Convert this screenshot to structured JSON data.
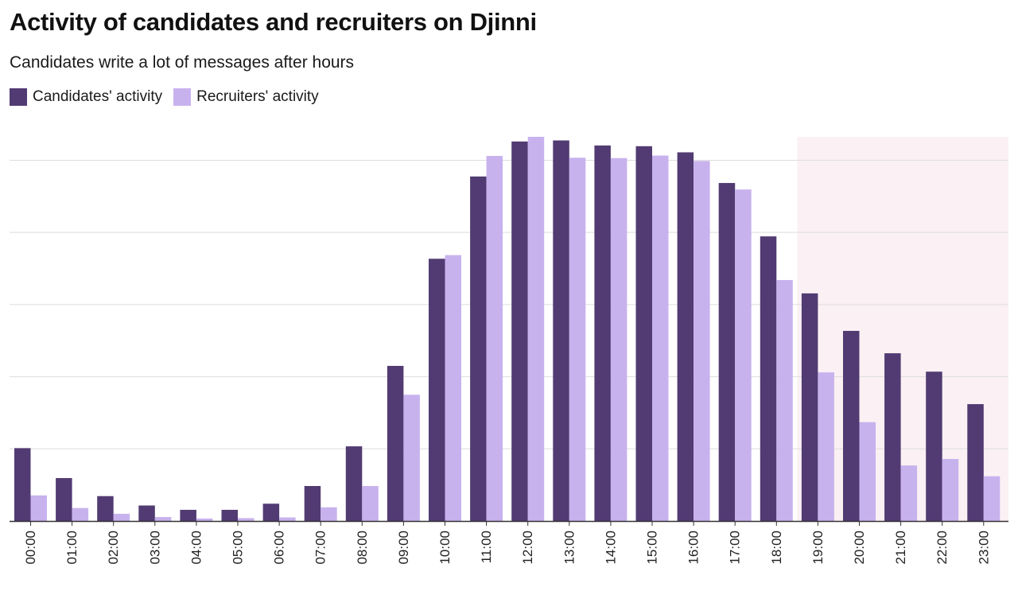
{
  "header": {
    "title": "Activity of candidates and recruiters on Djinni",
    "subtitle": "Candidates write a lot of messages after hours"
  },
  "colors": {
    "candidates": "#523b73",
    "recruiters": "#c8b2ee",
    "highlight": "#fbf0f3",
    "grid": "#dddddd",
    "axis": "#333333"
  },
  "chart_data": {
    "type": "bar",
    "title": "Activity of candidates and recruiters on Djinni",
    "subtitle": "Candidates write a lot of messages after hours",
    "xlabel": "",
    "ylabel": "",
    "ylim": [
      0,
      1.065
    ],
    "grid": true,
    "legend_position": "top-left",
    "highlight_range": [
      "19:00",
      "23:00"
    ],
    "categories": [
      "00:00",
      "01:00",
      "02:00",
      "03:00",
      "04:00",
      "05:00",
      "06:00",
      "07:00",
      "08:00",
      "09:00",
      "10:00",
      "11:00",
      "12:00",
      "13:00",
      "14:00",
      "15:00",
      "16:00",
      "17:00",
      "18:00",
      "19:00",
      "20:00",
      "21:00",
      "22:00",
      "23:00"
    ],
    "series": [
      {
        "name": "Candidates' activity",
        "color": "#523b73",
        "values": [
          0.202,
          0.119,
          0.069,
          0.043,
          0.031,
          0.031,
          0.048,
          0.097,
          0.207,
          0.43,
          0.727,
          0.955,
          1.052,
          1.055,
          1.041,
          1.039,
          1.022,
          0.937,
          0.789,
          0.631,
          0.527,
          0.465,
          0.414,
          0.324
        ]
      },
      {
        "name": "Recruiters' activity",
        "color": "#c8b2ee",
        "values": [
          0.071,
          0.036,
          0.02,
          0.011,
          0.007,
          0.008,
          0.01,
          0.038,
          0.097,
          0.35,
          0.737,
          1.012,
          1.065,
          1.007,
          1.006,
          1.013,
          0.998,
          0.919,
          0.668,
          0.412,
          0.274,
          0.154,
          0.172,
          0.124
        ]
      }
    ]
  }
}
